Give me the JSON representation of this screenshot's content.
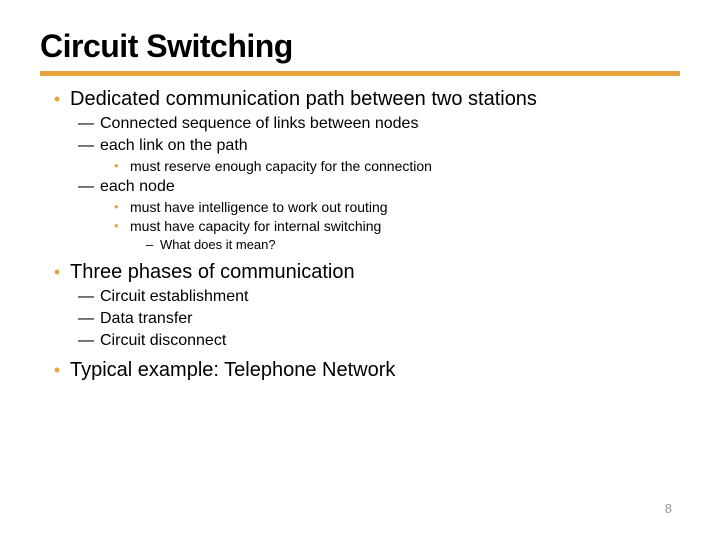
{
  "title": "Circuit Switching",
  "accent_color": "#e8a33d",
  "bullet_color": "#e8a33d",
  "page_number": "8",
  "items": [
    {
      "text": "Dedicated communication path between two stations",
      "children": [
        {
          "text": "Connected sequence of links between nodes"
        },
        {
          "text": "each link on the path",
          "children": [
            {
              "text": "must reserve enough capacity for the connection"
            }
          ]
        },
        {
          "text": "each node",
          "children": [
            {
              "text": "must have intelligence to work out routing"
            },
            {
              "text": "must have capacity for internal switching",
              "children": [
                {
                  "text": "What does it mean?"
                }
              ]
            }
          ]
        }
      ]
    },
    {
      "text": "Three phases of communication",
      "children": [
        {
          "text": "Circuit establishment"
        },
        {
          "text": "Data transfer"
        },
        {
          "text": "Circuit disconnect"
        }
      ]
    },
    {
      "text": "Typical example: Telephone Network"
    }
  ]
}
